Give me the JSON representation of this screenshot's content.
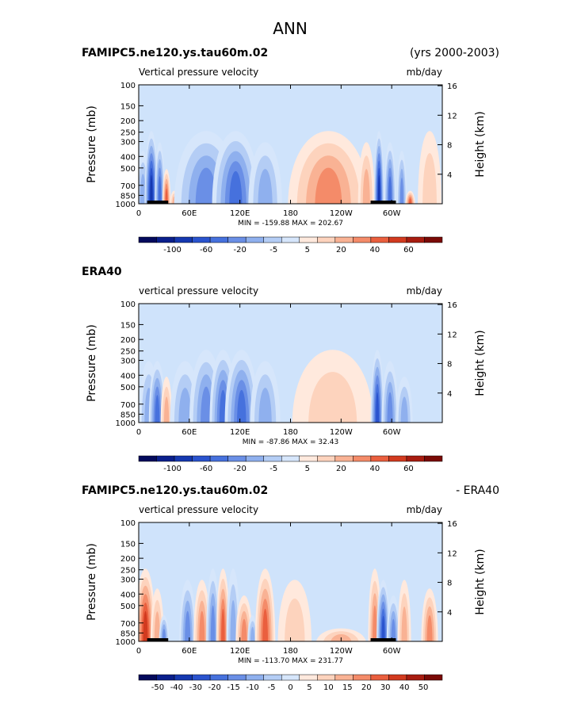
{
  "figure": {
    "title": "ANN"
  },
  "colors": {
    "panel_bg": "#cfe3fb",
    "plus_scale": [
      "#ffe9dd",
      "#fdd3bd",
      "#f9b294",
      "#f48b69",
      "#ea5f3e",
      "#d23a1f",
      "#a81c10",
      "#7a0a06"
    ],
    "minus_scale": [
      "#d6e6fb",
      "#b4cdf5",
      "#8fb0ee",
      "#6a8fe6",
      "#4671dd",
      "#2a53ce",
      "#1538b0",
      "#0a1f8c",
      "#030a5c"
    ]
  },
  "chart_data": [
    {
      "type": "heatmap",
      "name": "model",
      "title_left": "FAMIPC5.ne120.ys.tau60m.02",
      "title_right": "(yrs 2000-2003)",
      "subtitle_left": "Vertical pressure velocity",
      "subtitle_right": "mb/day",
      "ylabel": "Pressure (mb)",
      "ylabel_right": "Height (km)",
      "x_ticks": [
        "0",
        "60E",
        "120E",
        "180",
        "120W",
        "60W"
      ],
      "y_ticks": [
        "100",
        "150",
        "200",
        "250",
        "300",
        "400",
        "500",
        "700",
        "850",
        "1000"
      ],
      "y_right_ticks": [
        "16",
        "12",
        "8",
        "4"
      ],
      "stats": "MIN = -159.88   MAX = 202.67",
      "colorbar_labels": [
        "-100",
        "-60",
        "-20",
        "-5",
        "5",
        "20",
        "40",
        "60"
      ],
      "features": [
        {
          "lon": 5,
          "width": 8,
          "p_top": 250,
          "level": -3
        },
        {
          "lon": 15,
          "width": 8,
          "p_top": 150,
          "level": -7
        },
        {
          "lon": 25,
          "width": 6,
          "p_top": 200,
          "level": -5
        },
        {
          "lon": 33,
          "width": 5,
          "p_top": 400,
          "level": 5
        },
        {
          "lon": 42,
          "width": 5,
          "p_top": 700,
          "level": 3
        },
        {
          "lon": 80,
          "width": 38,
          "p_top": 150,
          "level": -4
        },
        {
          "lon": 115,
          "width": 28,
          "p_top": 150,
          "level": -5
        },
        {
          "lon": 150,
          "width": 20,
          "p_top": 200,
          "level": -3
        },
        {
          "lon": 225,
          "width": 48,
          "p_top": 150,
          "level": 4
        },
        {
          "lon": 270,
          "width": 10,
          "p_top": 200,
          "level": 3
        },
        {
          "lon": 285,
          "width": 6,
          "p_top": 150,
          "level": -7
        },
        {
          "lon": 298,
          "width": 7,
          "p_top": 200,
          "level": -5
        },
        {
          "lon": 312,
          "width": 6,
          "p_top": 250,
          "level": -4
        },
        {
          "lon": 322,
          "width": 6,
          "p_top": 700,
          "level": 5
        },
        {
          "lon": 345,
          "width": 14,
          "p_top": 150,
          "level": 2
        }
      ],
      "topography": [
        [
          10,
          35
        ],
        [
          275,
          305
        ]
      ]
    },
    {
      "type": "heatmap",
      "name": "era40",
      "title_left": "ERA40",
      "subtitle_left": "vertical pressure velocity",
      "subtitle_right": "mb/day",
      "ylabel": "Pressure (mb)",
      "ylabel_right": "Height (km)",
      "x_ticks": [
        "0",
        "60E",
        "120E",
        "180",
        "120W",
        "60W"
      ],
      "y_ticks": [
        "100",
        "150",
        "200",
        "250",
        "300",
        "400",
        "500",
        "700",
        "850",
        "1000"
      ],
      "y_right_ticks": [
        "16",
        "12",
        "8",
        "4"
      ],
      "stats": "MIN = -87.86   MAX =  32.43",
      "colorbar_labels": [
        "-100",
        "-60",
        "-20",
        "-5",
        "5",
        "20",
        "40",
        "60"
      ],
      "features": [
        {
          "lon": 12,
          "width": 12,
          "p_top": 200,
          "level": -3
        },
        {
          "lon": 22,
          "width": 10,
          "p_top": 200,
          "level": -5
        },
        {
          "lon": 33,
          "width": 7,
          "p_top": 300,
          "level": 3
        },
        {
          "lon": 55,
          "width": 18,
          "p_top": 200,
          "level": -3
        },
        {
          "lon": 80,
          "width": 20,
          "p_top": 150,
          "level": -4
        },
        {
          "lon": 100,
          "width": 16,
          "p_top": 150,
          "level": -5
        },
        {
          "lon": 122,
          "width": 20,
          "p_top": 150,
          "level": -5
        },
        {
          "lon": 150,
          "width": 18,
          "p_top": 200,
          "level": -3
        },
        {
          "lon": 230,
          "width": 48,
          "p_top": 150,
          "level": 2
        },
        {
          "lon": 283,
          "width": 8,
          "p_top": 150,
          "level": -6
        },
        {
          "lon": 298,
          "width": 10,
          "p_top": 200,
          "level": -4
        },
        {
          "lon": 315,
          "width": 10,
          "p_top": 300,
          "level": -3
        }
      ],
      "topography": []
    },
    {
      "type": "heatmap",
      "name": "difference",
      "title_left": "FAMIPC5.ne120.ys.tau60m.02",
      "title_right": "- ERA40",
      "subtitle_left": "vertical pressure velocity",
      "subtitle_right": "mb/day",
      "ylabel": "Pressure (mb)",
      "ylabel_right": "Height (km)",
      "x_ticks": [
        "0",
        "60E",
        "120E",
        "180",
        "120W",
        "60W"
      ],
      "y_ticks": [
        "100",
        "150",
        "200",
        "250",
        "300",
        "400",
        "500",
        "700",
        "850",
        "1000"
      ],
      "y_right_ticks": [
        "16",
        "12",
        "8",
        "4"
      ],
      "stats": "MIN = -113.70   MAX = 231.77",
      "colorbar_labels": [
        "-50",
        "-40",
        "-30",
        "-20",
        "-15",
        "-10",
        "-5",
        "0",
        "5",
        "10",
        "15",
        "20",
        "30",
        "40",
        "50"
      ],
      "features": [
        {
          "lon": 8,
          "width": 12,
          "p_top": 150,
          "level": 6
        },
        {
          "lon": 22,
          "width": 8,
          "p_top": 250,
          "level": 3
        },
        {
          "lon": 30,
          "width": 6,
          "p_top": 500,
          "level": -4
        },
        {
          "lon": 58,
          "width": 10,
          "p_top": 200,
          "level": -4
        },
        {
          "lon": 75,
          "width": 10,
          "p_top": 200,
          "level": 4
        },
        {
          "lon": 88,
          "width": 8,
          "p_top": 150,
          "level": -4
        },
        {
          "lon": 100,
          "width": 8,
          "p_top": 150,
          "level": 5
        },
        {
          "lon": 112,
          "width": 8,
          "p_top": 150,
          "level": -3
        },
        {
          "lon": 125,
          "width": 10,
          "p_top": 300,
          "level": 4
        },
        {
          "lon": 135,
          "width": 6,
          "p_top": 500,
          "level": -3
        },
        {
          "lon": 150,
          "width": 12,
          "p_top": 150,
          "level": 5
        },
        {
          "lon": 185,
          "width": 20,
          "p_top": 200,
          "level": 2
        },
        {
          "lon": 240,
          "width": 30,
          "p_top": 700,
          "level": 3
        },
        {
          "lon": 280,
          "width": 8,
          "p_top": 150,
          "level": 4
        },
        {
          "lon": 290,
          "width": 8,
          "p_top": 200,
          "level": -6
        },
        {
          "lon": 302,
          "width": 8,
          "p_top": 300,
          "level": -4
        },
        {
          "lon": 315,
          "width": 8,
          "p_top": 200,
          "level": 3
        },
        {
          "lon": 345,
          "width": 10,
          "p_top": 250,
          "level": 4
        }
      ],
      "topography": [
        [
          10,
          35
        ],
        [
          275,
          305
        ]
      ]
    }
  ]
}
